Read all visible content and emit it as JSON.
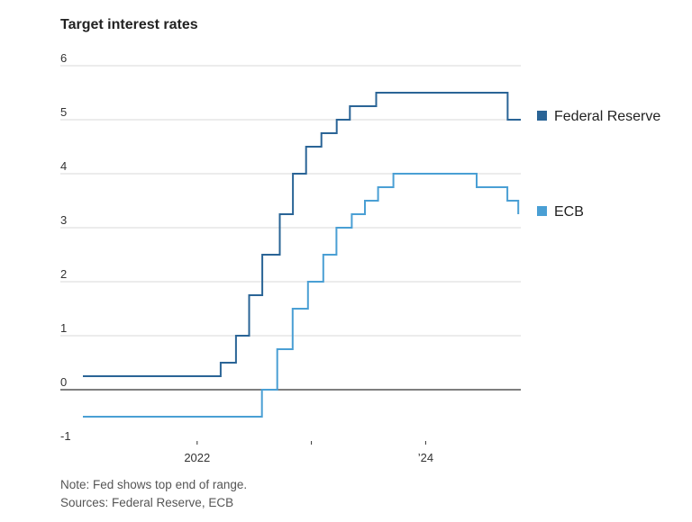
{
  "page": {
    "title": "Target interest rates"
  },
  "footer": {
    "note": "Note: Fed shows top end of range.",
    "sources": "Sources: Federal Reserve, ECB"
  },
  "chart_data": {
    "type": "line",
    "step": true,
    "title": "Target interest rates",
    "xlabel": "",
    "ylabel": "",
    "ylim": [
      -1,
      6
    ],
    "xlim": [
      "2021-01-01",
      "2024-10-31"
    ],
    "yticks": [
      6,
      5,
      4,
      3,
      2,
      1,
      0,
      -1
    ],
    "xticks": [
      {
        "label": "2022",
        "date": "2022-01-01"
      },
      {
        "label": "",
        "date": "2023-01-01"
      },
      {
        "label": "’24",
        "date": "2024-01-01"
      }
    ],
    "grid": true,
    "legend": "right",
    "series": [
      {
        "name": "Federal Reserve",
        "color": "#2a6496",
        "points": [
          [
            "2021-01-01",
            0.25
          ],
          [
            "2022-03-17",
            0.5
          ],
          [
            "2022-05-05",
            1.0
          ],
          [
            "2022-06-16",
            1.75
          ],
          [
            "2022-07-28",
            2.5
          ],
          [
            "2022-09-22",
            3.25
          ],
          [
            "2022-11-03",
            4.0
          ],
          [
            "2022-12-15",
            4.5
          ],
          [
            "2023-02-02",
            4.75
          ],
          [
            "2023-03-23",
            5.0
          ],
          [
            "2023-05-04",
            5.25
          ],
          [
            "2023-07-27",
            5.5
          ],
          [
            "2024-09-19",
            5.0
          ],
          [
            "2024-10-31",
            5.0
          ]
        ]
      },
      {
        "name": "ECB",
        "color": "#4a9fd4",
        "points": [
          [
            "2021-01-01",
            -0.5
          ],
          [
            "2022-07-27",
            0.0
          ],
          [
            "2022-09-14",
            0.75
          ],
          [
            "2022-11-02",
            1.5
          ],
          [
            "2022-12-21",
            2.0
          ],
          [
            "2023-02-08",
            2.5
          ],
          [
            "2023-03-22",
            3.0
          ],
          [
            "2023-05-10",
            3.25
          ],
          [
            "2023-06-21",
            3.5
          ],
          [
            "2023-08-02",
            3.75
          ],
          [
            "2023-09-20",
            4.0
          ],
          [
            "2024-06-12",
            3.75
          ],
          [
            "2024-09-18",
            3.5
          ],
          [
            "2024-10-23",
            3.25
          ]
        ]
      }
    ]
  }
}
